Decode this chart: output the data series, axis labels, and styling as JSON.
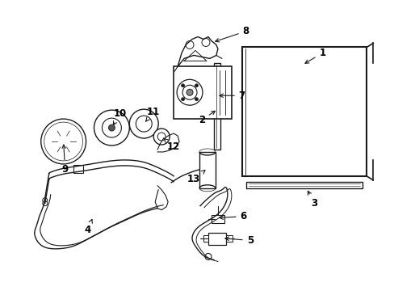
{
  "bg_color": "#ffffff",
  "line_color": "#1a1a1a",
  "label_color": "#000000",
  "label_fontsize": 8.5,
  "fig_width": 4.89,
  "fig_height": 3.6,
  "dpi": 100
}
